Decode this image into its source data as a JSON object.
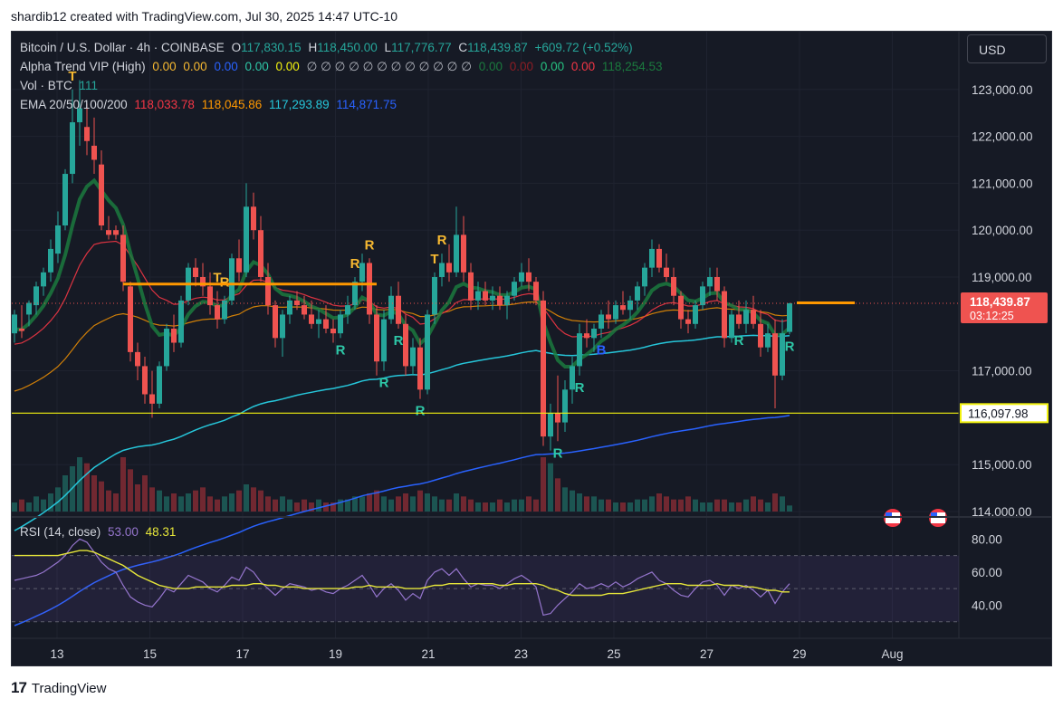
{
  "header": {
    "text": "shardib12 created with TradingView.com, Jul 30, 2025 14:47 UTC-10"
  },
  "footer": {
    "brand": "TradingView"
  },
  "currency_button": "USD",
  "legend": {
    "main": {
      "title": "Bitcoin / U.S. Dollar · 4h · COINBASE",
      "o_label": "O",
      "o": "117,830.15",
      "h_label": "H",
      "h": "118,450.00",
      "l_label": "L",
      "l": "117,776.77",
      "c_label": "C",
      "c": "118,439.87",
      "chg": "+609.72 (+0.52%)"
    },
    "alpha": {
      "title": "Alpha Trend VIP (High)",
      "v1": "0.00",
      "v2": "0.00",
      "v3": "0.00",
      "v4": "0.00",
      "v5": "0.00",
      "nulls": "∅ ∅ ∅ ∅ ∅ ∅ ∅ ∅ ∅ ∅ ∅ ∅",
      "v6": "0.00",
      "v7": "0.00",
      "v8": "0.00",
      "v9": "0.00",
      "v10": "118,254.53"
    },
    "vol": {
      "title": "Vol · BTC",
      "value": "111"
    },
    "ema": {
      "title": "EMA 20/50/100/200",
      "e20": "118,033.78",
      "e50": "118,045.86",
      "e100": "117,293.89",
      "e200": "114,871.75"
    },
    "rsi": {
      "title": "RSI (14, close)",
      "value": "53.00",
      "ma": "48.31"
    }
  },
  "colors": {
    "up": "#26a69a",
    "down": "#ef5350",
    "ema20": "#f23645",
    "ema50": "#ff9800",
    "ema100": "#26c6da",
    "ema200": "#2962ff",
    "rsi": "#9575cd",
    "rsi_ma": "#e6e63a",
    "level": "#f2f20f"
  },
  "chart_data": [
    {
      "type": "candlestick",
      "title": "Bitcoin / U.S. Dollar · 4h · COINBASE",
      "timeframe": "4h",
      "x_ticks": [
        "13",
        "15",
        "17",
        "19",
        "21",
        "23",
        "25",
        "27",
        "29",
        "Aug"
      ],
      "y_ticks": [
        "123,000.00",
        "122,000.00",
        "121,000.00",
        "120,000.00",
        "119,000.00",
        "117,000.00",
        "115,000.00",
        "114,000.00"
      ],
      "ylim": [
        114000,
        124000
      ],
      "last_price": "118,439.87",
      "countdown": "03:12:25",
      "level_line": "116,097.98",
      "ohlc": [
        [
          117800,
          118300,
          117600,
          118200
        ],
        [
          117900,
          118400,
          117700,
          117850
        ],
        [
          118200,
          118500,
          117950,
          118450
        ],
        [
          118400,
          118900,
          118200,
          118800
        ],
        [
          118800,
          119200,
          118600,
          119100
        ],
        [
          119100,
          119800,
          118900,
          119600
        ],
        [
          119500,
          120400,
          119300,
          120100
        ],
        [
          120100,
          121300,
          120000,
          121200
        ],
        [
          121200,
          123000,
          121000,
          122300
        ],
        [
          122300,
          123200,
          121800,
          122600
        ],
        [
          122200,
          122700,
          121600,
          121900
        ],
        [
          121800,
          122400,
          121200,
          121500
        ],
        [
          121400,
          121700,
          120000,
          120100
        ],
        [
          120000,
          120300,
          119800,
          119900
        ],
        [
          120000,
          120100,
          119800,
          119900
        ],
        [
          119900,
          120100,
          118700,
          118900
        ],
        [
          118800,
          118900,
          117200,
          117400
        ],
        [
          117400,
          117600,
          116800,
          117100
        ],
        [
          117100,
          117300,
          116300,
          116500
        ],
        [
          116500,
          117000,
          116000,
          116300
        ],
        [
          116300,
          117200,
          116200,
          117100
        ],
        [
          117100,
          118000,
          117000,
          117900
        ],
        [
          117900,
          118200,
          117400,
          117600
        ],
        [
          117600,
          118600,
          117500,
          118500
        ],
        [
          118500,
          119300,
          118400,
          119200
        ],
        [
          119200,
          119400,
          118800,
          119000
        ],
        [
          119000,
          119300,
          118600,
          118800
        ],
        [
          118800,
          119100,
          118200,
          118400
        ],
        [
          118400,
          118700,
          117900,
          118100
        ],
        [
          118100,
          118600,
          118000,
          118500
        ],
        [
          118500,
          119500,
          118400,
          119400
        ],
        [
          119400,
          119800,
          118900,
          119100
        ],
        [
          119100,
          121000,
          119000,
          120500
        ],
        [
          120500,
          120800,
          119800,
          120000
        ],
        [
          120000,
          120300,
          118900,
          119000
        ],
        [
          119000,
          119300,
          118200,
          118400
        ],
        [
          118400,
          118500,
          117500,
          117700
        ],
        [
          117700,
          118300,
          117300,
          118200
        ],
        [
          118200,
          118600,
          118000,
          118500
        ],
        [
          118500,
          118700,
          118300,
          118400
        ],
        [
          118400,
          118600,
          118100,
          118200
        ],
        [
          118200,
          118500,
          117900,
          118000
        ],
        [
          118000,
          118300,
          117700,
          118100
        ],
        [
          118100,
          118400,
          117800,
          117900
        ],
        [
          117900,
          118100,
          117600,
          117800
        ],
        [
          117800,
          118300,
          117700,
          118200
        ],
        [
          118200,
          118600,
          118000,
          118400
        ],
        [
          118400,
          119000,
          118300,
          118900
        ],
        [
          118900,
          119500,
          118700,
          119300
        ],
        [
          119300,
          119400,
          118000,
          118200
        ],
        [
          118200,
          118400,
          116900,
          117200
        ],
        [
          117200,
          118300,
          117000,
          118100
        ],
        [
          118100,
          118800,
          118000,
          118600
        ],
        [
          118600,
          118900,
          117900,
          118000
        ],
        [
          118000,
          118200,
          116900,
          117100
        ],
        [
          117100,
          117700,
          116900,
          117500
        ],
        [
          117500,
          117700,
          116400,
          116600
        ],
        [
          116600,
          118300,
          116500,
          118200
        ],
        [
          118200,
          119100,
          118000,
          119000
        ],
        [
          119000,
          119500,
          118800,
          119300
        ],
        [
          119300,
          119700,
          118900,
          119100
        ],
        [
          119100,
          120500,
          119000,
          119900
        ],
        [
          119900,
          120300,
          118900,
          119100
        ],
        [
          119100,
          119300,
          118300,
          118500
        ],
        [
          118500,
          118900,
          118300,
          118700
        ],
        [
          118700,
          118900,
          118400,
          118500
        ],
        [
          118500,
          118800,
          118300,
          118600
        ],
        [
          118600,
          118800,
          118300,
          118400
        ],
        [
          118400,
          118700,
          118100,
          118600
        ],
        [
          118600,
          119000,
          118500,
          118900
        ],
        [
          118900,
          119300,
          118800,
          119100
        ],
        [
          119100,
          119400,
          118700,
          118900
        ],
        [
          118900,
          119000,
          118400,
          118500
        ],
        [
          118500,
          118700,
          115400,
          115600
        ],
        [
          115600,
          116300,
          115300,
          116100
        ],
        [
          116100,
          116900,
          115500,
          115900
        ],
        [
          115900,
          116800,
          115700,
          116600
        ],
        [
          116600,
          117300,
          116300,
          117100
        ],
        [
          117100,
          118000,
          116900,
          117800
        ],
        [
          117800,
          118100,
          117500,
          117700
        ],
        [
          117700,
          118000,
          117400,
          117900
        ],
        [
          117900,
          118300,
          117700,
          118200
        ],
        [
          118200,
          118500,
          117900,
          118100
        ],
        [
          118100,
          118500,
          118000,
          118400
        ],
        [
          118400,
          118700,
          118200,
          118300
        ],
        [
          118300,
          118600,
          118100,
          118500
        ],
        [
          118500,
          118900,
          118300,
          118800
        ],
        [
          118800,
          119300,
          118600,
          119200
        ],
        [
          119200,
          119800,
          119000,
          119600
        ],
        [
          119600,
          119700,
          119100,
          119200
        ],
        [
          119200,
          119500,
          118900,
          119000
        ],
        [
          119000,
          119200,
          118400,
          118600
        ],
        [
          118600,
          118700,
          117900,
          118100
        ],
        [
          118100,
          118300,
          117800,
          118000
        ],
        [
          118000,
          118500,
          117900,
          118400
        ],
        [
          118400,
          118900,
          118300,
          118800
        ],
        [
          118800,
          119200,
          118600,
          119000
        ],
        [
          119000,
          119200,
          118500,
          118700
        ],
        [
          118700,
          118800,
          117500,
          117700
        ],
        [
          117700,
          118300,
          117600,
          118200
        ],
        [
          118200,
          118500,
          117900,
          118000
        ],
        [
          118000,
          118500,
          117800,
          118300
        ],
        [
          118300,
          118600,
          117900,
          118000
        ],
        [
          118000,
          118300,
          117300,
          117500
        ],
        [
          117500,
          118000,
          117400,
          117800
        ],
        [
          117800,
          118100,
          116200,
          116900
        ],
        [
          116900,
          118100,
          116800,
          117800
        ],
        [
          117830,
          118450,
          117776,
          118440
        ]
      ],
      "volume": [
        3,
        4,
        3,
        5,
        4,
        6,
        8,
        12,
        15,
        18,
        16,
        12,
        10,
        7,
        6,
        18,
        14,
        9,
        12,
        8,
        7,
        5,
        6,
        5,
        6,
        7,
        8,
        5,
        4,
        5,
        6,
        7,
        9,
        8,
        7,
        5,
        4,
        5,
        4,
        3,
        4,
        3,
        4,
        3,
        3,
        4,
        4,
        5,
        5,
        6,
        7,
        5,
        4,
        5,
        6,
        5,
        7,
        6,
        5,
        4,
        4,
        6,
        5,
        4,
        3,
        3,
        3,
        4,
        3,
        4,
        4,
        5,
        4,
        18,
        16,
        11,
        8,
        7,
        6,
        5,
        5,
        4,
        4,
        3,
        3,
        3,
        4,
        4,
        5,
        6,
        5,
        4,
        4,
        5,
        4,
        3,
        3,
        4,
        4,
        3,
        3,
        4,
        5,
        4,
        3,
        6,
        5,
        2
      ],
      "signals": [
        {
          "i": 8,
          "label": "T",
          "pos": "above",
          "color": "#f7b931"
        },
        {
          "i": 28,
          "label": "T",
          "pos": "above",
          "color": "#f7b931"
        },
        {
          "i": 29,
          "label": "R",
          "pos": "above",
          "color": "#f7b931"
        },
        {
          "i": 47,
          "label": "R",
          "pos": "above",
          "color": "#f7b931"
        },
        {
          "i": 49,
          "label": "R",
          "pos": "above",
          "color": "#f7b931"
        },
        {
          "i": 58,
          "label": "T",
          "pos": "above",
          "color": "#f7b931"
        },
        {
          "i": 59,
          "label": "R",
          "pos": "above",
          "color": "#f7b931"
        },
        {
          "i": 45,
          "label": "R",
          "pos": "below",
          "color": "#2ec8a8"
        },
        {
          "i": 51,
          "label": "R",
          "pos": "below",
          "color": "#2ec8a8"
        },
        {
          "i": 53,
          "label": "R",
          "pos": "below",
          "color": "#2ec8a8"
        },
        {
          "i": 56,
          "label": "R",
          "pos": "below",
          "color": "#2ec8a8"
        },
        {
          "i": 75,
          "label": "R",
          "pos": "below",
          "color": "#2ec8a8"
        },
        {
          "i": 78,
          "label": "R",
          "pos": "below",
          "color": "#2ec8a8"
        },
        {
          "i": 81,
          "label": "B",
          "pos": "below",
          "color": "#2962ff"
        },
        {
          "i": 100,
          "label": "R",
          "pos": "below",
          "color": "#2ec8a8"
        },
        {
          "i": 107,
          "label": "R",
          "pos": "below",
          "color": "#2ec8a8"
        }
      ]
    },
    {
      "type": "line",
      "title": "RSI (14, close)",
      "ylim": [
        20,
        90
      ],
      "y_ticks": [
        "80.00",
        "60.00",
        "40.00"
      ],
      "series": [
        {
          "name": "RSI",
          "values": [
            55,
            56,
            57,
            58,
            60,
            63,
            66,
            70,
            76,
            80,
            78,
            72,
            66,
            62,
            60,
            52,
            45,
            42,
            40,
            39,
            44,
            50,
            48,
            53,
            58,
            56,
            54,
            50,
            48,
            52,
            57,
            55,
            63,
            60,
            54,
            50,
            46,
            50,
            53,
            52,
            51,
            49,
            50,
            48,
            47,
            50,
            52,
            55,
            58,
            52,
            45,
            50,
            53,
            49,
            43,
            47,
            44,
            55,
            60,
            62,
            58,
            62,
            56,
            51,
            53,
            52,
            52,
            50,
            53,
            56,
            58,
            55,
            51,
            34,
            35,
            40,
            44,
            48,
            53,
            50,
            51,
            53,
            51,
            54,
            51,
            53,
            56,
            58,
            60,
            55,
            53,
            49,
            46,
            45,
            50,
            54,
            55,
            52,
            46,
            52,
            50,
            52,
            49,
            45,
            49,
            41,
            48,
            53
          ]
        },
        {
          "name": "RSI MA",
          "values": [
            70,
            70,
            70,
            70,
            70,
            70,
            70,
            71,
            72,
            73,
            73,
            72,
            70,
            68,
            66,
            64,
            61,
            58,
            56,
            54,
            52,
            51,
            50,
            50,
            50,
            51,
            51,
            51,
            51,
            51,
            52,
            52,
            52,
            53,
            53,
            52,
            52,
            51,
            51,
            51,
            50,
            50,
            50,
            50,
            50,
            50,
            50,
            51,
            51,
            52,
            51,
            51,
            51,
            51,
            50,
            50,
            50,
            51,
            52,
            52,
            53,
            53,
            53,
            53,
            53,
            53,
            53,
            52,
            52,
            53,
            53,
            53,
            53,
            52,
            50,
            49,
            47,
            46,
            46,
            46,
            46,
            46,
            47,
            47,
            47,
            48,
            49,
            50,
            51,
            52,
            53,
            53,
            53,
            52,
            52,
            52,
            52,
            53,
            52,
            52,
            52,
            51,
            51,
            50,
            49,
            49,
            48,
            48
          ]
        }
      ]
    }
  ]
}
